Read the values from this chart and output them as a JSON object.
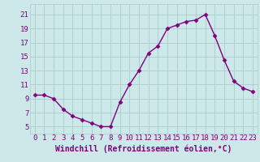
{
  "x": [
    0,
    1,
    2,
    3,
    4,
    5,
    6,
    7,
    8,
    9,
    10,
    11,
    12,
    13,
    14,
    15,
    16,
    17,
    18,
    19,
    20,
    21,
    22,
    23
  ],
  "y": [
    9.5,
    9.5,
    9.0,
    7.5,
    6.5,
    6.0,
    5.5,
    5.0,
    5.0,
    8.5,
    11.0,
    13.0,
    15.5,
    16.5,
    19.0,
    19.5,
    20.0,
    20.2,
    21.0,
    18.0,
    14.5,
    11.5,
    10.5,
    10.0
  ],
  "line_color": "#800080",
  "marker": "D",
  "marker_size": 2.5,
  "bg_color": "#cce8e8",
  "grid_color": "#aacccc",
  "xlabel": "Windchill (Refroidissement éolien,°C)",
  "yticks": [
    5,
    7,
    9,
    11,
    13,
    15,
    17,
    19,
    21
  ],
  "xticks": [
    0,
    1,
    2,
    3,
    4,
    5,
    6,
    7,
    8,
    9,
    10,
    11,
    12,
    13,
    14,
    15,
    16,
    17,
    18,
    19,
    20,
    21,
    22,
    23
  ],
  "ylim": [
    4.0,
    22.5
  ],
  "xlim": [
    -0.5,
    23.5
  ],
  "xlabel_fontsize": 7,
  "tick_fontsize": 6.5,
  "line_width": 1.0
}
